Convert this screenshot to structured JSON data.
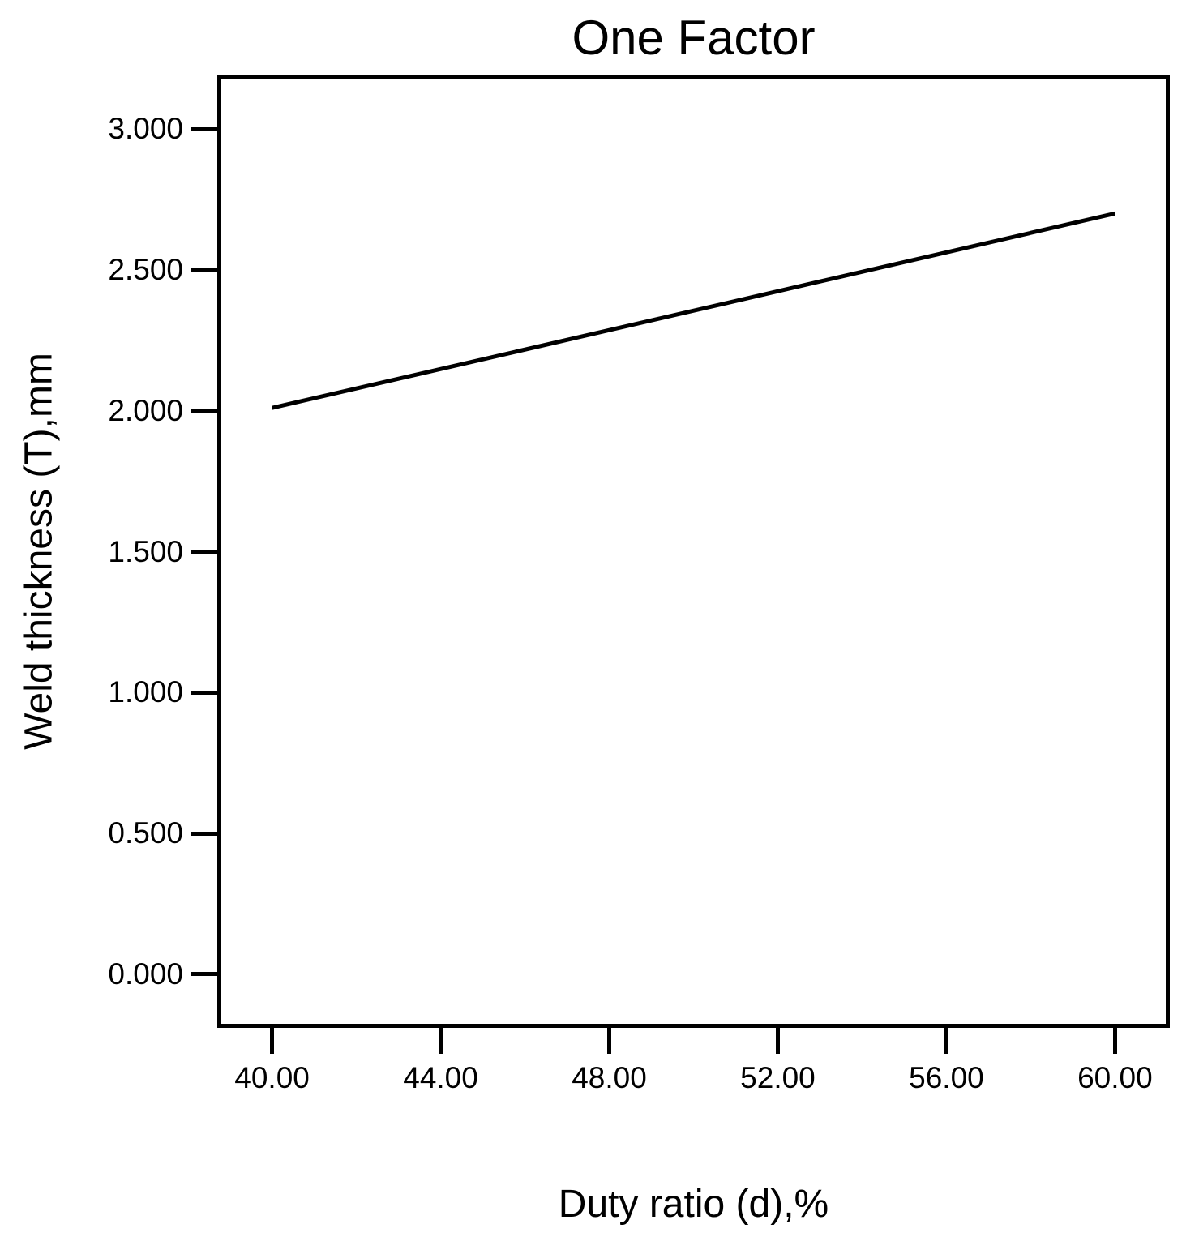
{
  "chart_data": {
    "type": "line",
    "title": "One Factor",
    "xlabel": "Duty ratio (d),%",
    "ylabel": "Weld thickness (T),mm",
    "x": [
      40.0,
      60.0
    ],
    "y": [
      2.01,
      2.7
    ],
    "xlim": [
      38.7,
      61.3
    ],
    "ylim": [
      -0.19,
      3.19
    ],
    "xticks": {
      "values": [
        40,
        44,
        48,
        52,
        56,
        60
      ],
      "labels": [
        "40.00",
        "44.00",
        "48.00",
        "52.00",
        "56.00",
        "60.00"
      ]
    },
    "yticks": {
      "values": [
        0.0,
        0.5,
        1.0,
        1.5,
        2.0,
        2.5,
        3.0
      ],
      "labels": [
        "0.000",
        "0.500",
        "1.000",
        "1.500",
        "2.000",
        "2.500",
        "3.000"
      ]
    },
    "grid": false,
    "legend": "none",
    "line_color": "#000000",
    "axis_color": "#000000",
    "background": "#ffffff"
  }
}
